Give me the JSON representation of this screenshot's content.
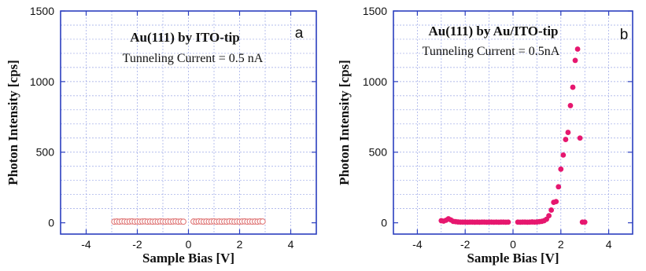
{
  "chart_data": [
    {
      "type": "scatter",
      "panel_label": "a",
      "annotation_title": "Au(111)  by ITO-tip",
      "annotation_subtitle": "Tunneling Current = 0.5 nA",
      "xlabel": "Sample Bias  [V]",
      "ylabel": "Photon Intensity  [cps]",
      "xlim": [
        -5,
        5
      ],
      "ylim": [
        -80,
        1500
      ],
      "xticks": [
        -4,
        -2,
        0,
        2,
        4
      ],
      "yticks": [
        0,
        500,
        1000,
        1500
      ],
      "grid": true,
      "marker": "open-circle",
      "color": "#e07a7a",
      "series": [
        {
          "x": [
            -2.9,
            -2.8,
            -2.7,
            -2.6,
            -2.5,
            -2.4,
            -2.3,
            -2.2,
            -2.1,
            -2.0,
            -1.9,
            -1.8,
            -1.7,
            -1.6,
            -1.5,
            -1.4,
            -1.3,
            -1.2,
            -1.1,
            -1.0,
            -0.9,
            -0.8,
            -0.7,
            -0.6,
            -0.5,
            -0.4,
            -0.3,
            -0.2,
            0.2,
            0.3,
            0.4,
            0.5,
            0.6,
            0.7,
            0.8,
            0.9,
            1.0,
            1.1,
            1.2,
            1.3,
            1.4,
            1.5,
            1.6,
            1.7,
            1.8,
            1.9,
            2.0,
            2.1,
            2.2,
            2.3,
            2.4,
            2.5,
            2.6,
            2.7,
            2.8,
            2.9
          ],
          "y": [
            8,
            9,
            8,
            10,
            9,
            8,
            9,
            10,
            8,
            9,
            8,
            9,
            10,
            8,
            9,
            8,
            9,
            8,
            10,
            9,
            8,
            9,
            8,
            9,
            10,
            8,
            9,
            8,
            9,
            8,
            10,
            9,
            8,
            9,
            8,
            9,
            10,
            8,
            9,
            8,
            9,
            8,
            10,
            9,
            8,
            9,
            8,
            9,
            10,
            8,
            9,
            8,
            9,
            8,
            10,
            9
          ]
        }
      ]
    },
    {
      "type": "scatter",
      "panel_label": "b",
      "annotation_title": "Au(111) by Au/ITO-tip",
      "annotation_subtitle": "Tunneling Current = 0.5nA",
      "xlabel": "Sample Bias  [V]",
      "ylabel": "Photon Intensity  [cps]",
      "xlim": [
        -5,
        5
      ],
      "ylim": [
        -80,
        1500
      ],
      "xticks": [
        -4,
        -2,
        0,
        2,
        4
      ],
      "yticks": [
        0,
        500,
        1000,
        1500
      ],
      "grid": true,
      "marker": "filled-circle",
      "color": "#e6176f",
      "series": [
        {
          "x": [
            -3.0,
            -2.9,
            -2.8,
            -2.7,
            -2.6,
            -2.5,
            -2.4,
            -2.3,
            -2.2,
            -2.1,
            -2.0,
            -1.9,
            -1.8,
            -1.7,
            -1.6,
            -1.5,
            -1.4,
            -1.3,
            -1.2,
            -1.1,
            -1.0,
            -0.9,
            -0.8,
            -0.7,
            -0.6,
            -0.5,
            -0.4,
            -0.3,
            -0.2,
            0.2,
            0.3,
            0.4,
            0.5,
            0.6,
            0.7,
            0.8,
            0.9,
            1.0,
            1.1,
            1.2,
            1.3,
            1.4,
            1.5,
            1.6,
            1.7,
            1.8,
            1.9,
            2.0,
            2.1,
            2.2,
            2.3,
            2.4,
            2.5,
            2.6,
            2.7,
            2.8,
            2.9,
            3.0
          ],
          "y": [
            15,
            12,
            18,
            28,
            20,
            10,
            8,
            6,
            5,
            5,
            5,
            4,
            5,
            5,
            4,
            5,
            4,
            5,
            5,
            4,
            5,
            5,
            4,
            5,
            4,
            5,
            5,
            4,
            5,
            5,
            4,
            5,
            5,
            4,
            5,
            6,
            5,
            6,
            8,
            10,
            15,
            25,
            50,
            90,
            145,
            150,
            255,
            380,
            480,
            590,
            640,
            830,
            960,
            1150,
            1230,
            600,
            5,
            5
          ]
        }
      ]
    }
  ]
}
